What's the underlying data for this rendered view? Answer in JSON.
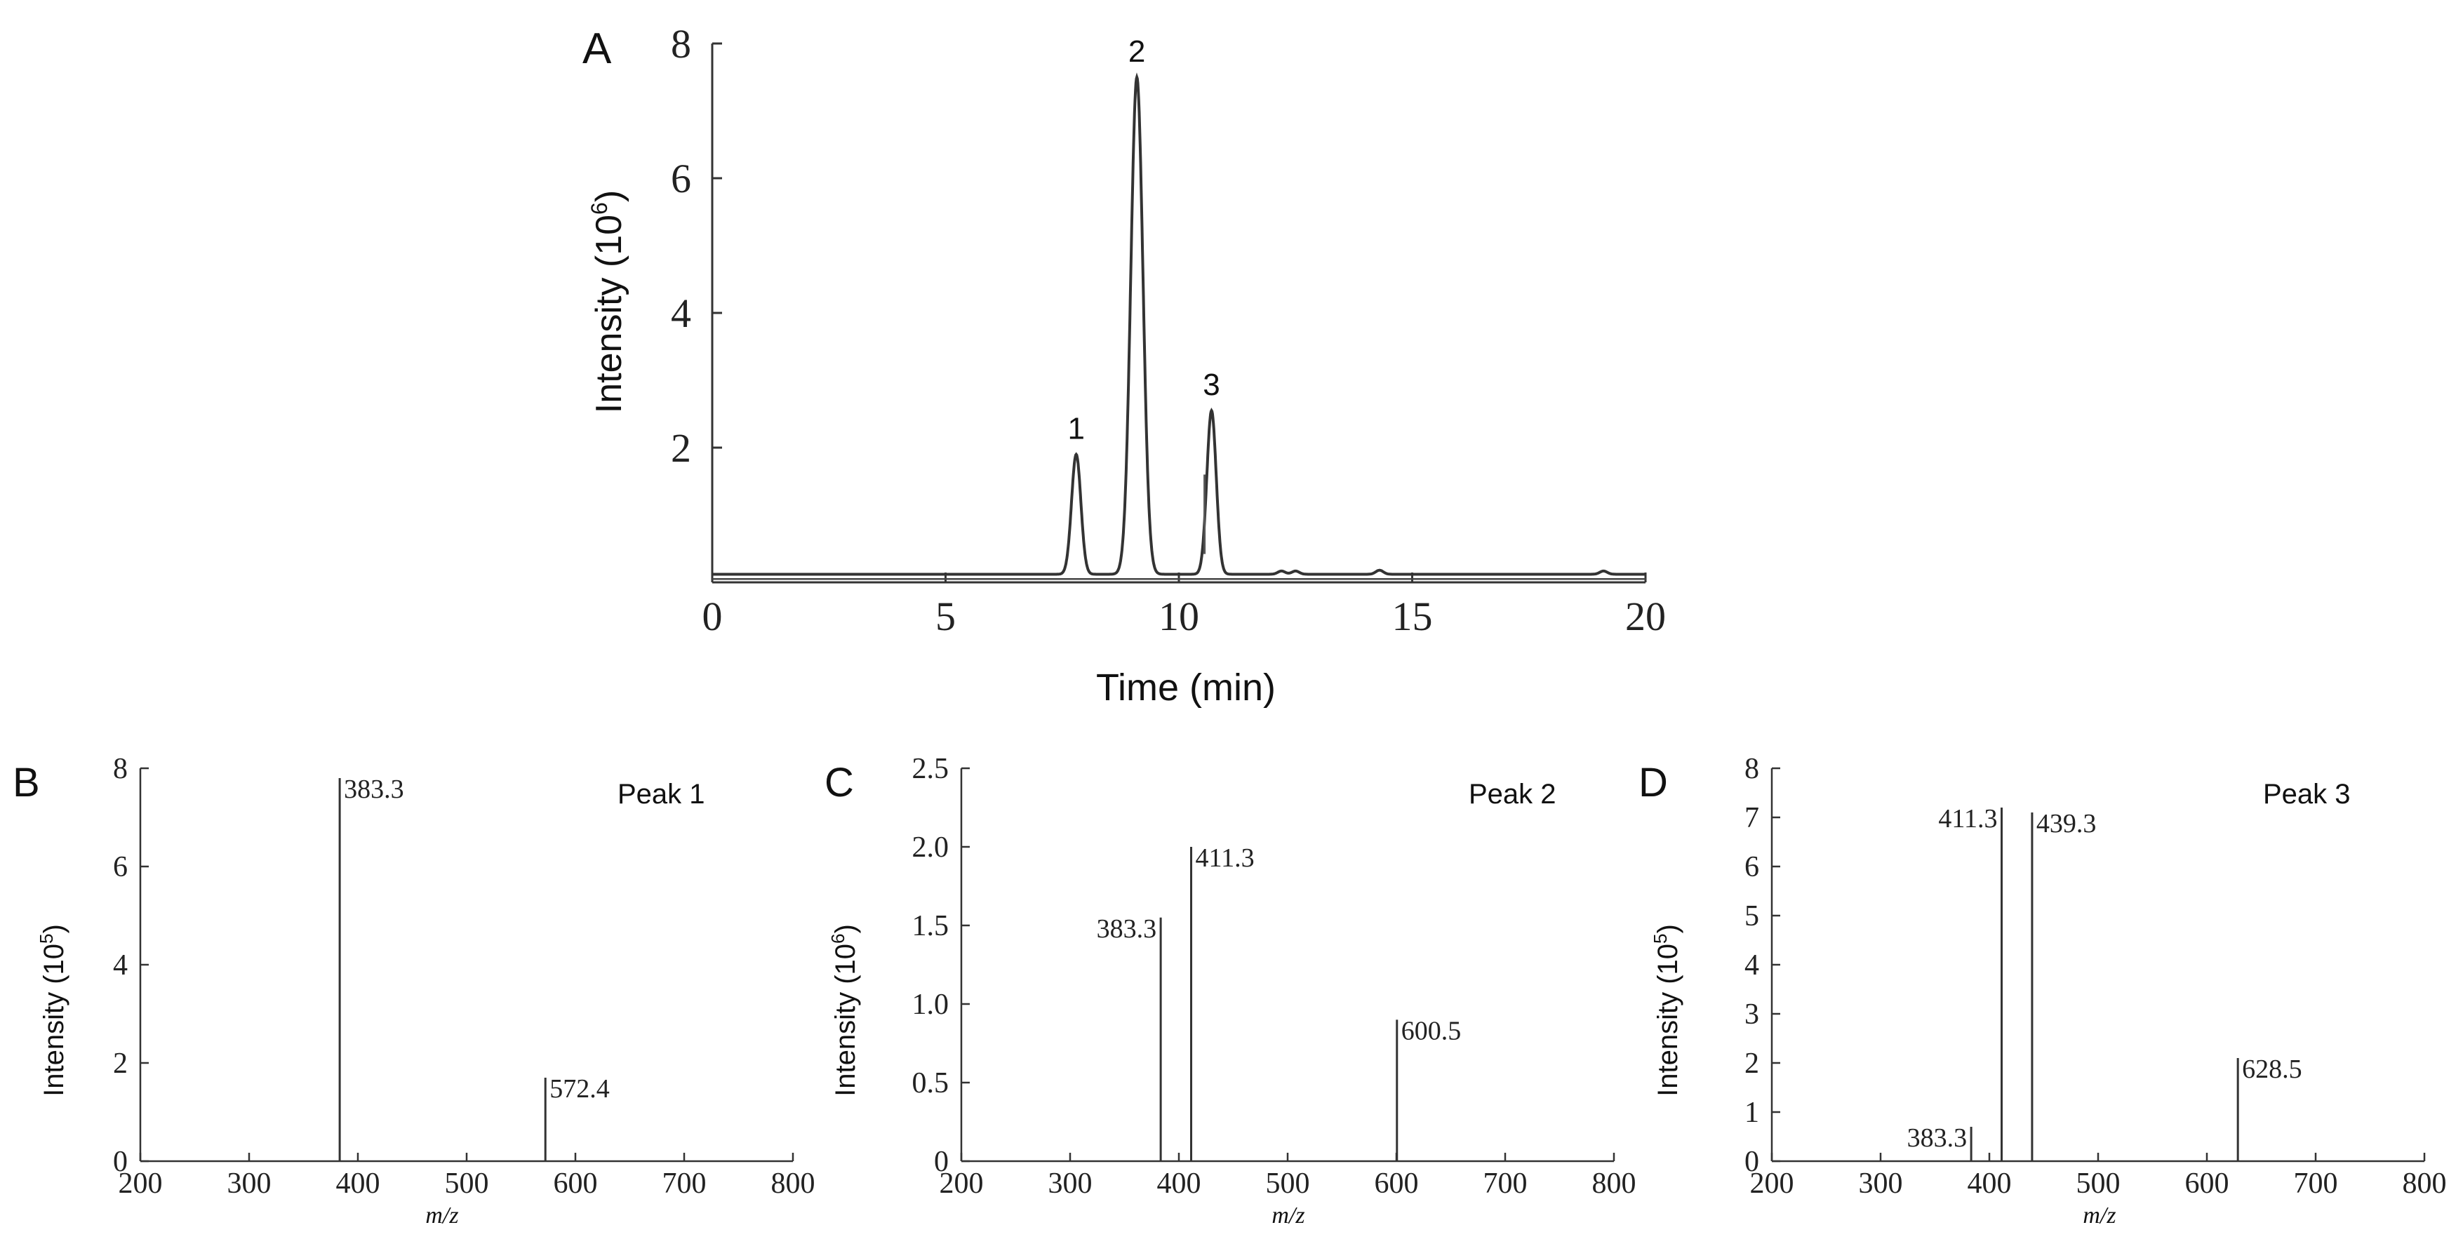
{
  "chart_data": [
    {
      "panel_letter": "A",
      "type": "line",
      "xlabel": "Time (min)",
      "ylabel_main": "Intensity (10",
      "ylabel_exp": "6",
      "ylabel_close": ")",
      "xlim": [
        0,
        20
      ],
      "ylim": [
        0,
        8
      ],
      "xticks": [
        0,
        5,
        10,
        15,
        20
      ],
      "yticks": [
        2,
        4,
        6,
        8
      ],
      "baseline": 0.12,
      "series": [
        {
          "peaks": [
            {
              "label": "1",
              "time": 7.8,
              "intensity": 1.9
            },
            {
              "label": "2",
              "time": 9.1,
              "intensity": 7.5
            },
            {
              "label": "3",
              "time": 10.7,
              "intensity": 2.55
            }
          ]
        }
      ],
      "minor_bumps": [
        {
          "time": 10.55,
          "intensity": 1.6
        },
        {
          "time": 12.2,
          "intensity": 0.2
        },
        {
          "time": 12.5,
          "intensity": 0.2
        },
        {
          "time": 14.3,
          "intensity": 0.22
        },
        {
          "time": 19.1,
          "intensity": 0.2
        }
      ]
    },
    {
      "panel_letter": "B",
      "type": "bar",
      "title": "Peak 1",
      "xlabel": "m/z",
      "ylabel_main": "Intensity (10",
      "ylabel_exp": "5",
      "ylabel_close": ")",
      "xlim": [
        200,
        800
      ],
      "ylim": [
        0,
        8
      ],
      "xticks": [
        200,
        300,
        400,
        500,
        600,
        700,
        800
      ],
      "yticks": [
        0,
        2,
        4,
        6,
        8
      ],
      "yticklabels": [
        "0",
        "2",
        "4",
        "6",
        "8"
      ],
      "peaks": [
        {
          "mz": 383.3,
          "intensity": 7.8,
          "label": "383.3",
          "label_side": "right"
        },
        {
          "mz": 572.4,
          "intensity": 1.7,
          "label": "572.4",
          "label_side": "right"
        }
      ]
    },
    {
      "panel_letter": "C",
      "type": "bar",
      "title": "Peak 2",
      "xlabel": "m/z",
      "ylabel_main": "Intensity (10",
      "ylabel_exp": "6",
      "ylabel_close": ")",
      "xlim": [
        200,
        800
      ],
      "ylim": [
        0,
        2.5
      ],
      "xticks": [
        200,
        300,
        400,
        500,
        600,
        700,
        800
      ],
      "yticks": [
        0,
        0.5,
        1.0,
        1.5,
        2.0,
        2.5
      ],
      "yticklabels": [
        "0",
        "0.5",
        "1.0",
        "1.5",
        "2.0",
        "2.5"
      ],
      "peaks": [
        {
          "mz": 383.3,
          "intensity": 1.55,
          "label": "383.3",
          "label_side": "left"
        },
        {
          "mz": 411.3,
          "intensity": 2.0,
          "label": "411.3",
          "label_side": "right"
        },
        {
          "mz": 600.5,
          "intensity": 0.9,
          "label": "600.5",
          "label_side": "right"
        }
      ]
    },
    {
      "panel_letter": "D",
      "type": "bar",
      "title": "Peak 3",
      "xlabel": "m/z",
      "ylabel_main": "Intensity (10",
      "ylabel_exp": "5",
      "ylabel_close": ")",
      "xlim": [
        200,
        800
      ],
      "ylim": [
        0,
        8
      ],
      "xticks": [
        200,
        300,
        400,
        500,
        600,
        700,
        800
      ],
      "yticks": [
        0,
        1,
        2,
        3,
        4,
        5,
        6,
        7,
        8
      ],
      "yticklabels": [
        "0",
        "1",
        "2",
        "3",
        "4",
        "5",
        "6",
        "7",
        "8"
      ],
      "peaks": [
        {
          "mz": 383.3,
          "intensity": 0.7,
          "label": "383.3",
          "label_side": "left"
        },
        {
          "mz": 411.3,
          "intensity": 7.2,
          "label": "411.3",
          "label_side": "left"
        },
        {
          "mz": 439.3,
          "intensity": 7.1,
          "label": "439.3",
          "label_side": "right"
        },
        {
          "mz": 628.5,
          "intensity": 2.1,
          "label": "628.5",
          "label_side": "right"
        }
      ]
    }
  ]
}
